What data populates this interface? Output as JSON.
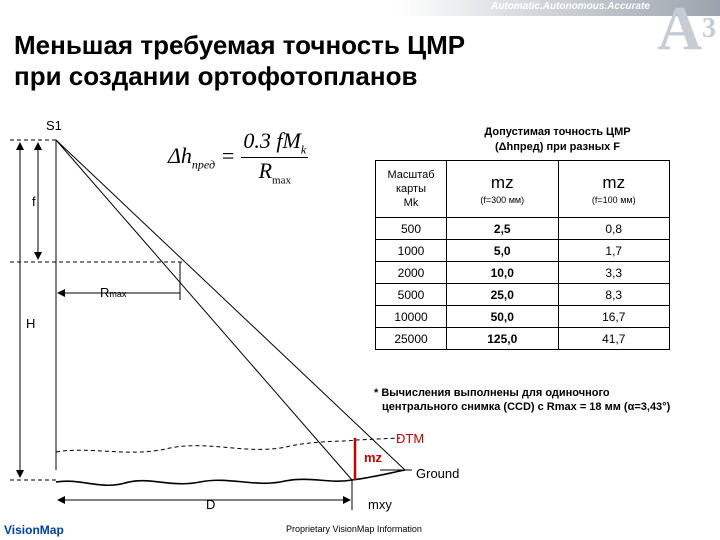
{
  "header": {
    "tagline": "Automatic.Autonomous.Accurate",
    "logo_main": "A",
    "logo_sup": "3",
    "title_line1": "Меньшая требуемая точность ЦМР",
    "title_line2": "при создании ортофотопланов"
  },
  "diagram": {
    "s1": "S1",
    "f": "f",
    "r_max": "R",
    "r_max_sub": "max",
    "h": "H",
    "dtm": "DTM",
    "mz": "mz",
    "ground": "Ground",
    "d": "D",
    "mxy": "mxy",
    "formula_lhs": "Δh",
    "formula_lhs_sub": "пред",
    "formula_num": "0.3 fM",
    "formula_num_sub": "k",
    "formula_den": "R",
    "formula_den_sub": "max"
  },
  "table": {
    "heading_line1": "Допустимая точность ЦМР",
    "heading_line2": "(Δhпред) при разных F",
    "col0_header": [
      "Масштаб",
      "карты",
      "Mk"
    ],
    "col1_header": "mz",
    "col1_sub": "(f=300 мм)",
    "col2_header": "mz",
    "col2_sub": "(f=100 мм)",
    "rows": [
      [
        "500",
        "2,5",
        "0,8"
      ],
      [
        "1000",
        "5,0",
        "1,7"
      ],
      [
        "2000",
        "10,0",
        "3,3"
      ],
      [
        "5000",
        "25,0",
        "8,3"
      ],
      [
        "10000",
        "50,0",
        "16,7"
      ],
      [
        "25000",
        "125,0",
        "41,7"
      ]
    ]
  },
  "note": {
    "line1": "* Вычисления выполнены для одиночного",
    "line2": "центрального снимка (CCD) с Rmax = 18 мм (α=3,43°)"
  },
  "footer": {
    "logo": "VisionMap",
    "text": "Proprietary VisionMap Information"
  }
}
